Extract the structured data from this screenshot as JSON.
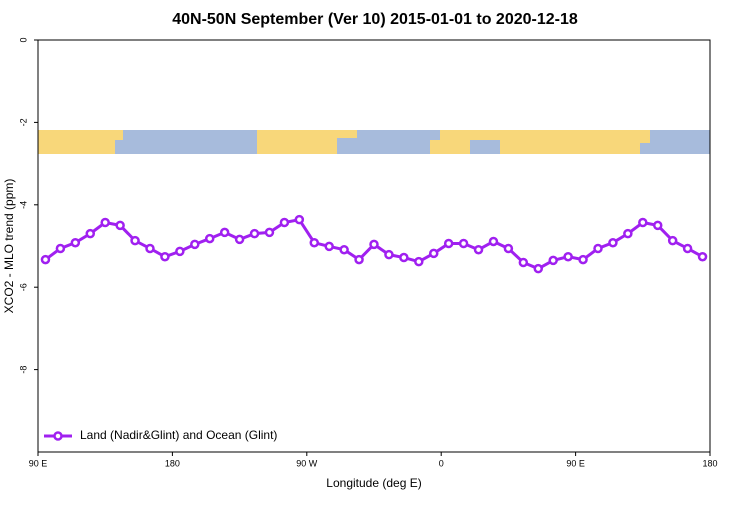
{
  "chart_data": {
    "type": "line",
    "title": "40N-50N September (Ver 10)   2015-01-01 to 2020-12-18",
    "x_label": "Longitude (deg E)",
    "y_label": "XCO2 - MLO trend (ppm)",
    "x": [
      95,
      105,
      115,
      125,
      135,
      145,
      155,
      165,
      175,
      185,
      195,
      205,
      215,
      225,
      235,
      245,
      255,
      265,
      275,
      285,
      295,
      305,
      315,
      325,
      335,
      345,
      355,
      365,
      375,
      385,
      395,
      405,
      415,
      425,
      435,
      445,
      455,
      465,
      475,
      485,
      495,
      505,
      515,
      525,
      535
    ],
    "series": [
      {
        "name": "Land (Nadir&Glint) and Ocean (Glint)",
        "color": "#a020f0",
        "values": [
          -5.33,
          -5.06,
          -4.92,
          -4.7,
          -4.43,
          -4.5,
          -4.87,
          -5.06,
          -5.26,
          -5.13,
          -4.96,
          -4.82,
          -4.67,
          -4.84,
          -4.7,
          -4.67,
          -4.43,
          -4.36,
          -4.92,
          -5.01,
          -5.09,
          -5.33,
          -4.96,
          -5.21,
          -5.28,
          -5.38,
          -5.18,
          -4.94,
          -4.94,
          -5.09,
          -4.89,
          -5.06,
          -5.4,
          -5.55,
          -5.35,
          -5.26,
          -5.33,
          -5.06,
          -4.92,
          -4.7,
          -4.43,
          -4.5,
          -4.87,
          -5.06,
          -5.26
        ]
      }
    ],
    "xlim": [
      90,
      540
    ],
    "xticks": [
      {
        "value": 90,
        "label": "90 E"
      },
      {
        "value": 180,
        "label": "180"
      },
      {
        "value": 270,
        "label": "90 W"
      },
      {
        "value": 360,
        "label": "0"
      },
      {
        "value": 450,
        "label": "90 E"
      },
      {
        "value": 540,
        "label": "180"
      }
    ],
    "ylim": [
      -10,
      0
    ],
    "yticks": [
      0,
      -2,
      -4,
      -6,
      -8
    ],
    "legend": "bottom-left"
  }
}
